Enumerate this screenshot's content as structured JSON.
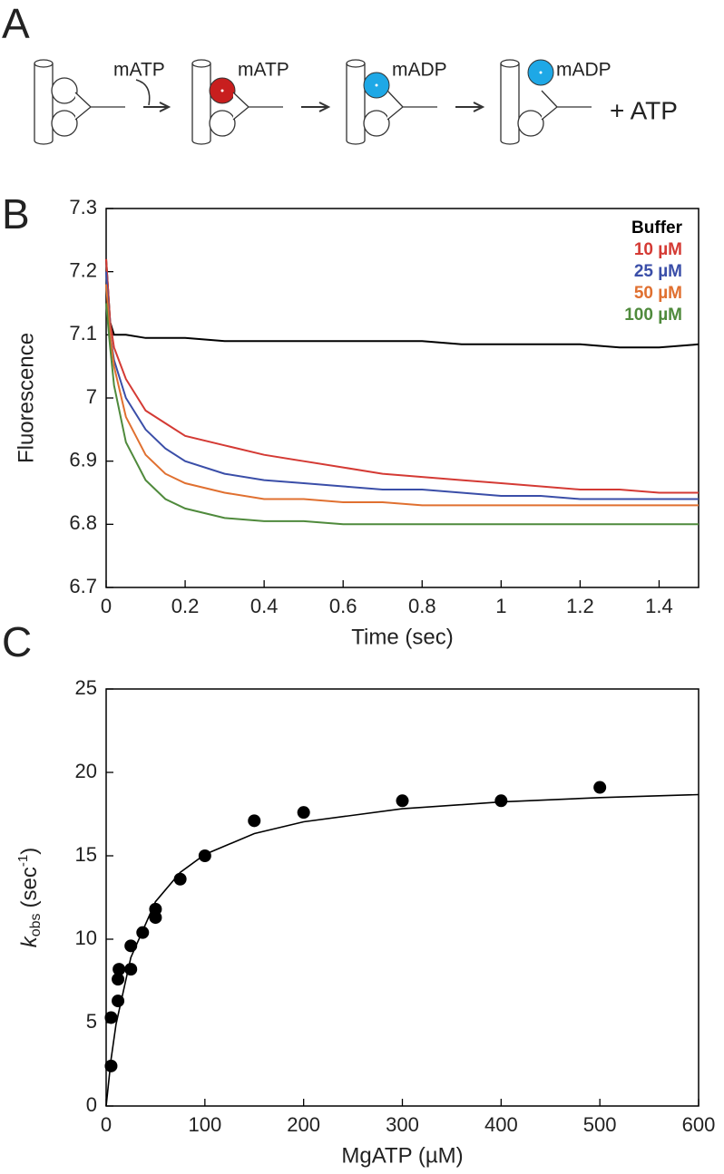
{
  "panels": [
    "A",
    "B",
    "C"
  ],
  "scheme": {
    "labels": [
      "mATP",
      "mATP",
      "mADP",
      "mADP",
      "+ ATP"
    ]
  },
  "chart_data": [
    {
      "type": "line",
      "xlabel": "Time (sec)",
      "ylabel": "Fluorescence",
      "x": [
        0,
        0.01,
        0.02,
        0.05,
        0.1,
        0.15,
        0.2,
        0.3,
        0.4,
        0.5,
        0.6,
        0.7,
        0.8,
        0.9,
        1.0,
        1.1,
        1.2,
        1.3,
        1.4,
        1.5
      ],
      "series": [
        {
          "name": "Buffer",
          "color": "#000000",
          "values": [
            7.22,
            7.12,
            7.1,
            7.1,
            7.095,
            7.095,
            7.095,
            7.09,
            7.09,
            7.09,
            7.09,
            7.09,
            7.09,
            7.085,
            7.085,
            7.085,
            7.085,
            7.08,
            7.08,
            7.085
          ]
        },
        {
          "name": "10 µM",
          "color": "#d43a34",
          "values": [
            7.22,
            7.12,
            7.08,
            7.03,
            6.98,
            6.96,
            6.94,
            6.925,
            6.91,
            6.9,
            6.89,
            6.88,
            6.875,
            6.87,
            6.865,
            6.86,
            6.855,
            6.855,
            6.85,
            6.85
          ]
        },
        {
          "name": "25 µM",
          "color": "#3a4ea8",
          "values": [
            7.2,
            7.1,
            7.06,
            7.0,
            6.95,
            6.92,
            6.9,
            6.88,
            6.87,
            6.865,
            6.86,
            6.855,
            6.855,
            6.85,
            6.845,
            6.845,
            6.84,
            6.84,
            6.84,
            6.84
          ]
        },
        {
          "name": "50 µM",
          "color": "#e07030",
          "values": [
            7.18,
            7.1,
            7.05,
            6.97,
            6.91,
            6.88,
            6.865,
            6.85,
            6.84,
            6.84,
            6.835,
            6.835,
            6.83,
            6.83,
            6.83,
            6.83,
            6.83,
            6.83,
            6.83,
            6.83
          ]
        },
        {
          "name": "100 µM",
          "color": "#4f8a3c",
          "values": [
            7.15,
            7.08,
            7.02,
            6.93,
            6.87,
            6.84,
            6.825,
            6.81,
            6.805,
            6.805,
            6.8,
            6.8,
            6.8,
            6.8,
            6.8,
            6.8,
            6.8,
            6.8,
            6.8,
            6.8
          ]
        }
      ],
      "xlim": [
        0,
        1.5
      ],
      "xticks": [
        0,
        0.2,
        0.4,
        0.6,
        0.8,
        1,
        1.2,
        1.4
      ],
      "ylim": [
        6.7,
        7.3
      ],
      "yticks": [
        6.7,
        6.8,
        6.9,
        7,
        7.1,
        7.2,
        7.3
      ],
      "legend": "upper right"
    },
    {
      "type": "scatter",
      "xlabel": "MgATP (µM)",
      "ylabel": [
        "k",
        "obs",
        "(sec",
        "-1",
        ")"
      ],
      "x": [
        5,
        5,
        12,
        12,
        13,
        25,
        25,
        37,
        50,
        50,
        75,
        100,
        150,
        200,
        300,
        400,
        500
      ],
      "values": [
        2.4,
        5.3,
        6.3,
        7.6,
        8.2,
        8.2,
        9.6,
        10.4,
        11.3,
        11.8,
        13.6,
        15,
        17.1,
        17.6,
        18.3,
        18.3,
        19.1
      ],
      "color": "#000000",
      "fit": {
        "x": [
          0,
          5,
          10,
          25,
          50,
          75,
          100,
          150,
          200,
          300,
          400,
          500,
          600
        ],
        "values": [
          0,
          2.8,
          4.9,
          8.9,
          12.25,
          14.0,
          15.08,
          16.33,
          17.04,
          17.82,
          18.23,
          18.49,
          18.67
        ]
      },
      "xlim": [
        0,
        600
      ],
      "xticks": [
        0,
        100,
        200,
        300,
        400,
        500,
        600
      ],
      "ylim": [
        0,
        25
      ],
      "yticks": [
        0,
        5,
        10,
        15,
        20,
        25
      ]
    }
  ]
}
